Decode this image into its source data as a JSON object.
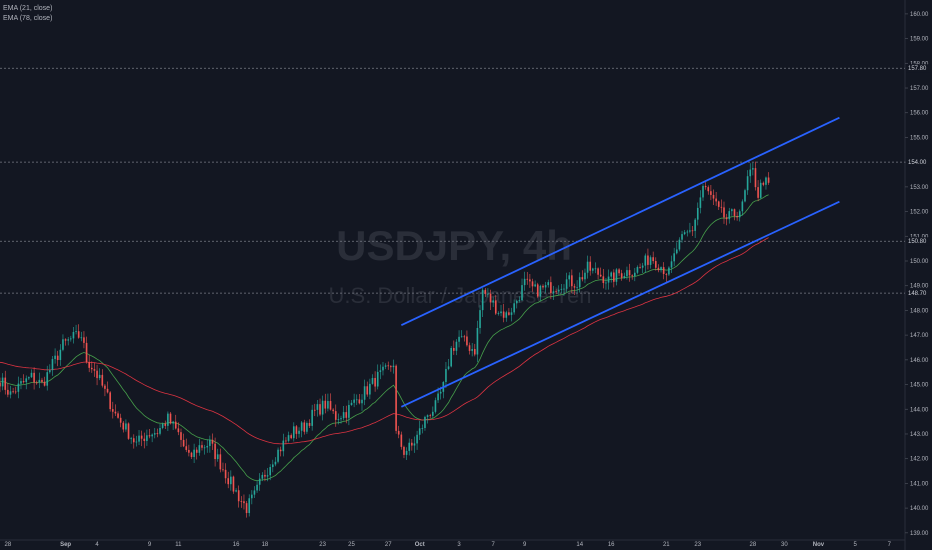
{
  "watermark": {
    "symbol": "USDJPY, 4h",
    "description": "U.S. Dollar / Japanese Yen"
  },
  "indicators": [
    {
      "label": "EMA (21, close)",
      "color": "#4caf50"
    },
    {
      "label": "EMA (78, close)",
      "color": "#f23645"
    }
  ],
  "colors": {
    "background": "#131722",
    "up": "#26a69a",
    "down": "#ef5350",
    "channel": "#2962ff",
    "level_line": "#787b86",
    "axis_text": "#b2b5be"
  },
  "chart_data": {
    "type": "candlestick",
    "symbol": "USDJPY",
    "timeframe": "4h",
    "y_axis": {
      "ylim": [
        138.75,
        160.4
      ],
      "ticks": [
        139,
        140,
        141,
        142,
        143,
        144,
        145,
        146,
        147,
        148,
        149,
        150,
        151,
        152,
        153,
        154,
        155,
        156,
        157,
        158,
        159,
        160
      ],
      "tick_labels": [
        "139.00",
        "140.00",
        "141.00",
        "142.00",
        "143.00",
        "144.00",
        "145.00",
        "146.00",
        "147.00",
        "148.00",
        "149.00",
        "150.00",
        "151.00",
        "152.00",
        "153.00",
        "154.00",
        "155.00",
        "156.00",
        "157.00",
        "158.00",
        "159.00",
        "160.00"
      ],
      "position": "right"
    },
    "x_axis": {
      "xlim": [
        0,
        345
      ],
      "labels": [
        {
          "x": 3,
          "label": "28",
          "bold": false
        },
        {
          "x": 25,
          "label": "Sep",
          "bold": true
        },
        {
          "x": 37,
          "label": "4",
          "bold": false
        },
        {
          "x": 57,
          "label": "9",
          "bold": false
        },
        {
          "x": 68,
          "label": "11",
          "bold": false
        },
        {
          "x": 90,
          "label": "16",
          "bold": false
        },
        {
          "x": 101,
          "label": "18",
          "bold": false
        },
        {
          "x": 123,
          "label": "23",
          "bold": false
        },
        {
          "x": 134,
          "label": "25",
          "bold": false
        },
        {
          "x": 148,
          "label": "27",
          "bold": false
        },
        {
          "x": 160,
          "label": "Oct",
          "bold": true
        },
        {
          "x": 175,
          "label": "3",
          "bold": false
        },
        {
          "x": 188,
          "label": "7",
          "bold": false
        },
        {
          "x": 200,
          "label": "9",
          "bold": false
        },
        {
          "x": 221,
          "label": "14",
          "bold": false
        },
        {
          "x": 233,
          "label": "16",
          "bold": false
        },
        {
          "x": 254,
          "label": "21",
          "bold": false
        },
        {
          "x": 266,
          "label": "23",
          "bold": false
        },
        {
          "x": 287,
          "label": "28",
          "bold": false
        },
        {
          "x": 299,
          "label": "30",
          "bold": false
        },
        {
          "x": 312,
          "label": "Nov",
          "bold": true
        },
        {
          "x": 326,
          "label": "5",
          "bold": false
        },
        {
          "x": 339,
          "label": "7",
          "bold": false
        }
      ]
    },
    "horizontal_levels": [
      {
        "value": 157.8,
        "label": "157.80"
      },
      {
        "value": 154.0,
        "label": "154.00"
      },
      {
        "value": 150.8,
        "label": "150.80"
      },
      {
        "value": 148.7,
        "label": "148.70"
      }
    ],
    "trend_channel": [
      {
        "name": "upper",
        "from": {
          "x": 153,
          "y": 147.4
        },
        "to": {
          "x": 320,
          "y": 155.8
        }
      },
      {
        "name": "lower",
        "from": {
          "x": 153,
          "y": 144.1
        },
        "to": {
          "x": 320,
          "y": 152.4
        }
      }
    ],
    "price_anchors": [
      [
        0,
        145.2
      ],
      [
        4,
        144.6
      ],
      [
        8,
        145.0
      ],
      [
        12,
        145.3
      ],
      [
        16,
        145.0
      ],
      [
        20,
        145.8
      ],
      [
        24,
        146.6
      ],
      [
        28,
        146.9
      ],
      [
        31,
        147.0
      ],
      [
        33,
        146.0
      ],
      [
        36,
        145.6
      ],
      [
        40,
        144.7
      ],
      [
        44,
        143.8
      ],
      [
        48,
        143.2
      ],
      [
        52,
        142.6
      ],
      [
        56,
        143.0
      ],
      [
        60,
        143.1
      ],
      [
        64,
        143.6
      ],
      [
        68,
        143.0
      ],
      [
        72,
        142.0
      ],
      [
        76,
        142.5
      ],
      [
        80,
        142.6
      ],
      [
        84,
        141.8
      ],
      [
        88,
        141.0
      ],
      [
        92,
        140.3
      ],
      [
        94,
        140.0
      ],
      [
        97,
        140.5
      ],
      [
        100,
        141.2
      ],
      [
        104,
        142.0
      ],
      [
        108,
        142.6
      ],
      [
        112,
        143.1
      ],
      [
        116,
        143.3
      ],
      [
        120,
        143.9
      ],
      [
        124,
        144.2
      ],
      [
        128,
        143.7
      ],
      [
        132,
        143.9
      ],
      [
        136,
        144.4
      ],
      [
        140,
        144.8
      ],
      [
        144,
        145.3
      ],
      [
        148,
        145.6
      ],
      [
        150,
        145.9
      ],
      [
        151,
        143.0
      ],
      [
        154,
        142.3
      ],
      [
        157,
        142.5
      ],
      [
        160,
        143.1
      ],
      [
        163,
        143.8
      ],
      [
        166,
        144.1
      ],
      [
        169,
        144.9
      ],
      [
        172,
        146.4
      ],
      [
        175,
        146.9
      ],
      [
        178,
        146.6
      ],
      [
        181,
        146.4
      ],
      [
        184,
        148.8
      ],
      [
        187,
        148.4
      ],
      [
        190,
        148.0
      ],
      [
        193,
        147.8
      ],
      [
        196,
        148.2
      ],
      [
        200,
        149.1
      ],
      [
        204,
        148.8
      ],
      [
        208,
        148.9
      ],
      [
        212,
        149.0
      ],
      [
        216,
        149.2
      ],
      [
        220,
        149.1
      ],
      [
        224,
        149.7
      ],
      [
        228,
        149.5
      ],
      [
        232,
        149.2
      ],
      [
        236,
        149.5
      ],
      [
        240,
        149.6
      ],
      [
        244,
        149.7
      ],
      [
        248,
        150.2
      ],
      [
        252,
        149.8
      ],
      [
        255,
        149.5
      ],
      [
        258,
        150.5
      ],
      [
        261,
        151.0
      ],
      [
        264,
        151.3
      ],
      [
        268,
        153.0
      ],
      [
        271,
        152.6
      ],
      [
        274,
        152.0
      ],
      [
        277,
        151.7
      ],
      [
        280,
        151.9
      ],
      [
        283,
        152.2
      ],
      [
        285,
        153.3
      ],
      [
        287,
        153.6
      ],
      [
        289,
        152.7
      ],
      [
        291,
        153.3
      ],
      [
        293,
        153.0
      ]
    ],
    "candle_count": 294,
    "ema_series": [
      {
        "name": "EMA (21, close)",
        "period": 21,
        "color": "#4caf50"
      },
      {
        "name": "EMA (78, close)",
        "period": 78,
        "color": "#f23645"
      }
    ],
    "grid": false
  }
}
